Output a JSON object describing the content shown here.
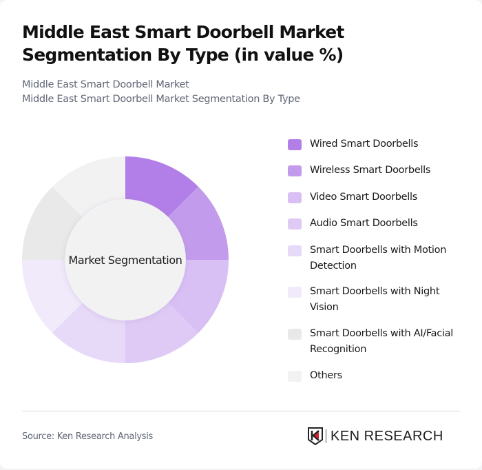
{
  "header": {
    "title": "Middle East Smart Doorbell Market Segmentation By Type (in value %)",
    "subtitle_line1": "Middle East Smart Doorbell Market",
    "subtitle_line2": "Middle East Smart Doorbell Market Segmentation By Type"
  },
  "chart": {
    "center_label": "Market Segmentation"
  },
  "legend": [
    {
      "label": "Wired Smart Doorbells",
      "color": "#b27ee8"
    },
    {
      "label": "Wireless Smart Doorbells",
      "color": "#c39bec"
    },
    {
      "label": "Video Smart Doorbells",
      "color": "#d8bff4"
    },
    {
      "label": "Audio Smart Doorbells",
      "color": "#dfcaf5"
    },
    {
      "label": "Smart Doorbells with Motion Detection",
      "color": "#e7d9f8"
    },
    {
      "label": "Smart Doorbells with Night Vision",
      "color": "#f1eafb"
    },
    {
      "label": "Smart Doorbells with AI/Facial Recognition",
      "color": "#e9e9e9"
    },
    {
      "label": "Others",
      "color": "#f2f2f2"
    }
  ],
  "footer": {
    "source": "Source: Ken Research Analysis",
    "logo_text": "KEN RESEARCH"
  },
  "chart_data": {
    "type": "pie",
    "variant": "donut",
    "title": "Middle East Smart Doorbell Market Segmentation By Type (in value %)",
    "center_label": "Market Segmentation",
    "categories": [
      "Wired Smart Doorbells",
      "Wireless Smart Doorbells",
      "Video Smart Doorbells",
      "Audio Smart Doorbells",
      "Smart Doorbells with Motion Detection",
      "Smart Doorbells with Night Vision",
      "Smart Doorbells with AI/Facial Recognition",
      "Others"
    ],
    "values": [
      12.5,
      12.5,
      12.5,
      12.5,
      12.5,
      12.5,
      12.5,
      12.5
    ],
    "colors": [
      "#b27ee8",
      "#c39bec",
      "#d8bff4",
      "#dfcaf5",
      "#e7d9f8",
      "#f1eafb",
      "#e9e9e9",
      "#f2f2f2"
    ],
    "legend_position": "right",
    "start_angle": "12 o'clock, clockwise"
  }
}
